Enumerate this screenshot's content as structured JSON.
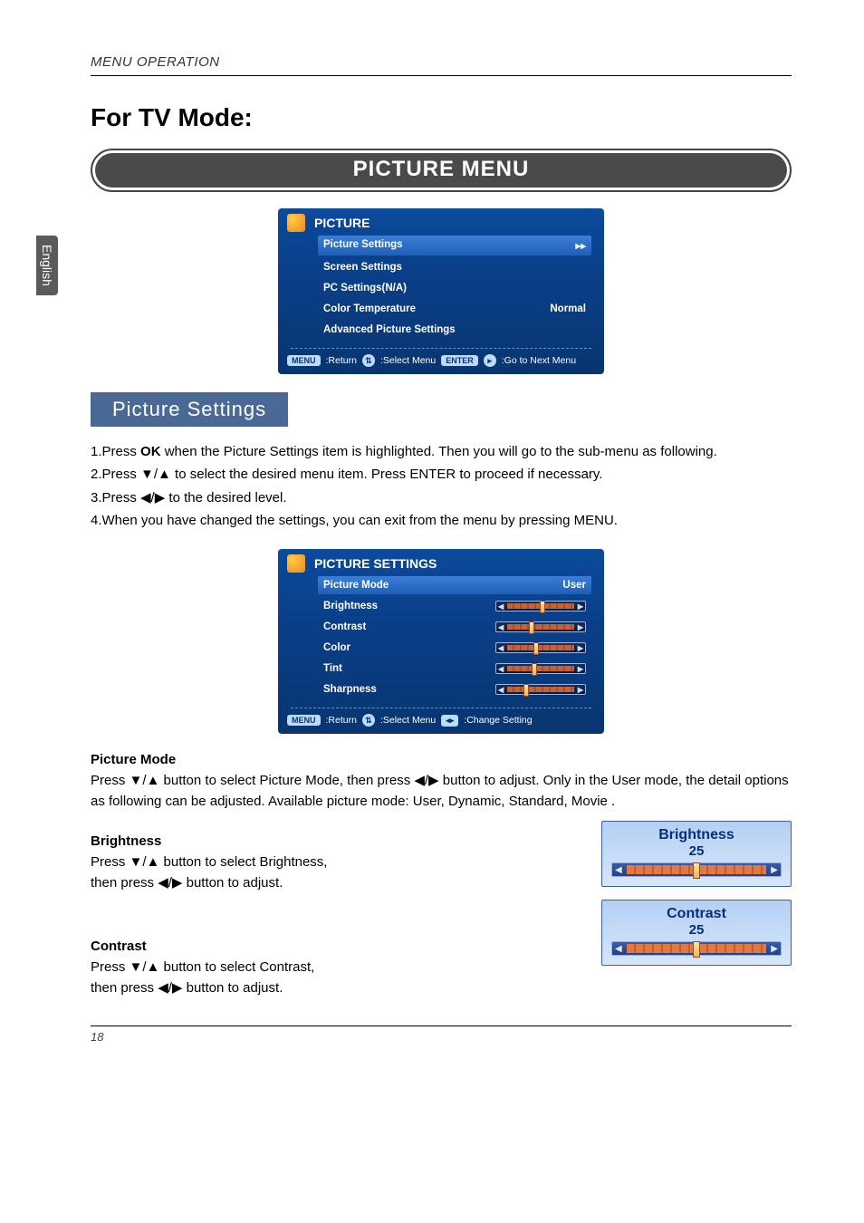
{
  "lang_tab": "English",
  "header": "MENU OPERATION",
  "main_title": "For TV Mode:",
  "banner": "PICTURE MENU",
  "osd1": {
    "title": "PICTURE",
    "rows": [
      {
        "label": "Picture Settings",
        "value": "▸▸",
        "highlight": true
      },
      {
        "label": "Screen Settings",
        "value": "",
        "highlight": false
      },
      {
        "label": "PC Settings(N/A)",
        "value": "",
        "highlight": false
      },
      {
        "label": "Color Temperature",
        "value": "Normal",
        "highlight": false
      },
      {
        "label": "Advanced Picture Settings",
        "value": "",
        "highlight": false
      }
    ],
    "footer": {
      "menu_btn": "MENU",
      "menu_lbl": ":Return",
      "select_lbl": ":Select Menu",
      "enter_btn": "ENTER",
      "enter_lbl": ":Go to Next Menu"
    }
  },
  "section_label": "Picture  Settings",
  "instructions": [
    "1.Press OK when the Picture Settings item is highlighted. Then you will go to the sub-menu as following.",
    "2.Press ▼/▲ to select the desired menu item. Press ENTER to proceed if necessary.",
    "3.Press ◀/▶ to the desired level.",
    "4.When you have changed the settings, you can exit from the menu by pressing MENU."
  ],
  "osd2": {
    "title": "PICTURE SETTINGS",
    "rows": [
      {
        "label": "Picture Mode",
        "type": "text",
        "value": "User",
        "highlight": true
      },
      {
        "label": "Brightness",
        "type": "slider",
        "pos": 52
      },
      {
        "label": "Contrast",
        "type": "slider",
        "pos": 34
      },
      {
        "label": "Color",
        "type": "slider",
        "pos": 42
      },
      {
        "label": "Tint",
        "type": "slider",
        "pos": 38
      },
      {
        "label": "Sharpness",
        "type": "slider",
        "pos": 25
      }
    ],
    "footer": {
      "menu_btn": "MENU",
      "menu_lbl": ":Return",
      "select_lbl": ":Select Menu",
      "change_lbl": ":Change Setting"
    }
  },
  "picture_mode": {
    "heading": "Picture Mode",
    "text": "Press ▼/▲ button to select Picture Mode, then press ◀/▶ button to adjust. Only in the User mode, the detail options as following can be adjusted. Available picture mode: User, Dynamic, Standard, Movie ."
  },
  "brightness": {
    "heading": "Brightness",
    "text1": "Press ▼/▲ button to select Brightness,",
    "text2": "then press ◀/▶ button to adjust.",
    "box_title": "Brightness",
    "box_value": "25"
  },
  "contrast": {
    "heading": "Contrast",
    "text1": "Press ▼/▲ button to select Contrast,",
    "text2": "then press ◀/▶ button to adjust.",
    "box_title": "Contrast",
    "box_value": "25"
  },
  "page_number": "18"
}
